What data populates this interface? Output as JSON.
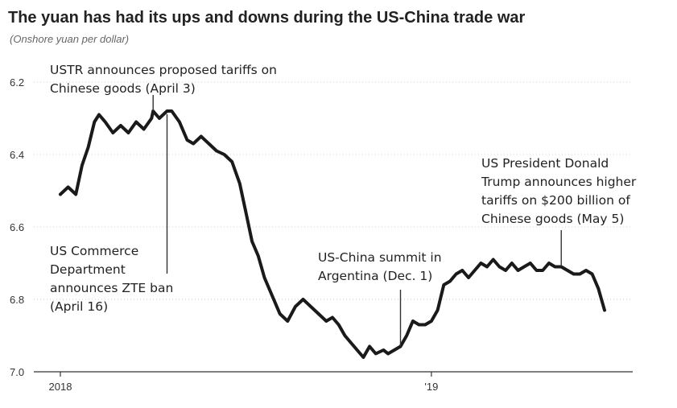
{
  "chart_data": {
    "type": "line",
    "title": "The yuan has had its ups and downs during the US-China trade war",
    "subtitle": "(Onshore yuan per dollar)",
    "y_inverted": true,
    "ylim": [
      6.2,
      7.0
    ],
    "yticks": [
      "6.2",
      "6.4",
      "6.6",
      "6.8",
      "7.0"
    ],
    "ytick_values": [
      6.2,
      6.4,
      6.6,
      6.8,
      7.0
    ],
    "xlim": [
      0,
      17.6
    ],
    "xticks": [
      {
        "label": "2018",
        "x": 0
      },
      {
        "label": "'19",
        "x": 12
      }
    ],
    "grid": true,
    "series": [
      {
        "color": "#1a1a1a",
        "x": [
          0,
          0.25,
          0.5,
          0.7,
          0.9,
          1.1,
          1.25,
          1.45,
          1.7,
          1.95,
          2.2,
          2.45,
          2.7,
          2.95,
          3.0,
          3.2,
          3.45,
          3.6,
          3.85,
          4.1,
          4.3,
          4.55,
          4.8,
          5.05,
          5.3,
          5.55,
          5.8,
          6.0,
          6.2,
          6.4,
          6.6,
          6.85,
          7.1,
          7.35,
          7.6,
          7.85,
          8.1,
          8.35,
          8.6,
          8.8,
          9.0,
          9.2,
          9.4,
          9.6,
          9.8,
          10.0,
          10.2,
          10.45,
          10.6,
          10.8,
          11.0,
          11.2,
          11.4,
          11.6,
          11.8,
          12.0,
          12.2,
          12.4,
          12.6,
          12.8,
          13.0,
          13.2,
          13.4,
          13.6,
          13.8,
          14.0,
          14.2,
          14.4,
          14.6,
          14.8,
          15.0,
          15.2,
          15.4,
          15.6,
          15.8,
          16.0,
          16.2,
          16.4,
          16.6,
          16.8,
          17.0,
          17.2,
          17.4,
          17.6
        ],
        "values": [
          6.51,
          6.49,
          6.51,
          6.43,
          6.38,
          6.31,
          6.29,
          6.31,
          6.34,
          6.32,
          6.34,
          6.31,
          6.33,
          6.3,
          6.28,
          6.3,
          6.28,
          6.28,
          6.31,
          6.36,
          6.37,
          6.35,
          6.37,
          6.39,
          6.4,
          6.42,
          6.48,
          6.56,
          6.64,
          6.68,
          6.74,
          6.79,
          6.84,
          6.86,
          6.82,
          6.8,
          6.82,
          6.84,
          6.86,
          6.85,
          6.87,
          6.9,
          6.92,
          6.94,
          6.96,
          6.93,
          6.95,
          6.94,
          6.95,
          6.94,
          6.93,
          6.9,
          6.86,
          6.87,
          6.87,
          6.86,
          6.83,
          6.76,
          6.75,
          6.73,
          6.72,
          6.74,
          6.72,
          6.7,
          6.71,
          6.69,
          6.71,
          6.72,
          6.7,
          6.72,
          6.71,
          6.7,
          6.72,
          6.72,
          6.7,
          6.71,
          6.71,
          6.72,
          6.73,
          6.73,
          6.72,
          6.73,
          6.77,
          6.83
        ]
      }
    ],
    "annotations": [
      {
        "lines": [
          "USTR announces proposed tariffs on",
          "Chinese goods (April 3)"
        ],
        "x": 3.0,
        "y": 6.28
      },
      {
        "lines": [
          "US Commerce",
          "Department",
          "announces ZTE ban",
          "(April 16)"
        ],
        "x": 3.45,
        "y": 6.28
      },
      {
        "lines": [
          "US-China summit in",
          "Argentina (Dec. 1)"
        ],
        "x": 11.0,
        "y": 6.93
      },
      {
        "lines": [
          "US President Donald",
          "Trump announces higher",
          "tariffs on $200 billion of",
          "Chinese goods (May 5)"
        ],
        "x": 16.2,
        "y": 6.71
      }
    ]
  }
}
